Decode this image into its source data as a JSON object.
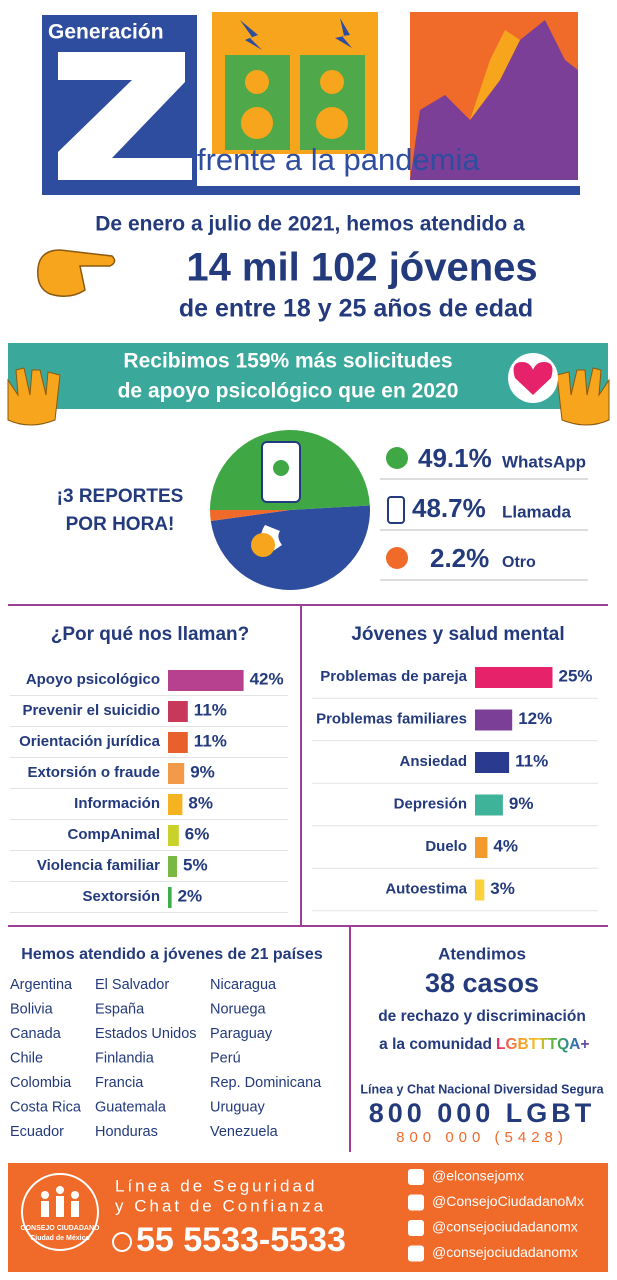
{
  "header": {
    "brand": "Generación",
    "subtitle": "frente a la pandemia"
  },
  "headline": {
    "line1": "De enero a julio de 2021, hemos atendido a",
    "line2": "14 mil 102 jóvenes",
    "line3": "de entre 18 y 25 años de edad"
  },
  "banner": {
    "line1": "Recibimos 159% más solicitudes",
    "line2": "de apoyo psicológico que en 2020"
  },
  "reports": {
    "line1": "¡3 REPORTES",
    "line2": "POR HORA!"
  },
  "chart_data": [
    {
      "type": "pie",
      "categories": [
        "WhatsApp",
        "Llamada",
        "Otro"
      ],
      "values": [
        49.1,
        48.7,
        2.2
      ],
      "value_labels": [
        "49.1%",
        "48.7%",
        "2.2%"
      ],
      "colors": [
        "#3fa845",
        "#2e4d9e",
        "#f06a2a"
      ]
    },
    {
      "type": "hbar",
      "title": "¿Por qué nos llaman?",
      "categories": [
        "Apoyo psicológico",
        "Prevenir el suicidio",
        "Orientación jurídica",
        "Extorsión o fraude",
        "Información",
        "CompAnimal",
        "Violencia familiar",
        "Sextorsión"
      ],
      "values": [
        42,
        11,
        11,
        9,
        8,
        6,
        5,
        2
      ],
      "value_labels": [
        "42%",
        "11%",
        "11%",
        "9%",
        "8%",
        "6%",
        "5%",
        "2%"
      ],
      "colors": [
        "#b8418f",
        "#c8385a",
        "#e8612c",
        "#f29a4a",
        "#f5b321",
        "#c9d22a",
        "#78b843",
        "#3fae49"
      ]
    },
    {
      "type": "hbar",
      "title": "Jóvenes y salud mental",
      "categories": [
        "Problemas de pareja",
        "Problemas familiares",
        "Ansiedad",
        "Depresión",
        "Duelo",
        "Autoestima"
      ],
      "values": [
        25,
        12,
        11,
        9,
        4,
        3
      ],
      "value_labels": [
        "25%",
        "12%",
        "11%",
        "9%",
        "4%",
        "3%"
      ],
      "colors": [
        "#e6226b",
        "#7b3f98",
        "#2a3a8f",
        "#3fb39a",
        "#f39a2c",
        "#fbd23a"
      ]
    }
  ],
  "countries": {
    "title": "Hemos atendido a jóvenes de 21 países",
    "list": [
      "Argentina",
      "Bolivia",
      "Canada",
      "Chile",
      "Colombia",
      "Costa Rica",
      "Ecuador",
      "El Salvador",
      "España",
      "Estados Unidos",
      "Finlandia",
      "Francia",
      "Guatemala",
      "Honduras",
      "Nicaragua",
      "Noruega",
      "Paraguay",
      "Perú",
      "Rep. Dominicana",
      "Uruguay",
      "Venezuela"
    ]
  },
  "lgbt": {
    "line1": "Atendimos",
    "line2": "38 casos",
    "line3": "de rechazo y discriminación",
    "line4": "a la comunidad",
    "acronym": "LGBTTTQA+",
    "hotline_title": "Línea y Chat Nacional Diversidad Segura",
    "number": "800 000 LGBT",
    "number_digits": "800 000 (5428)"
  },
  "footer": {
    "org": "CONSEJO CIUDADANO",
    "org_sub": "Ciudad de México",
    "line1": "Línea de Seguridad",
    "line2": "y Chat de Confianza",
    "phone": "55 5533-5533",
    "social": [
      "@elconsejomx",
      "@ConsejoCiudadanoMx",
      "@consejociudadanomx",
      "@consejociudadanomx"
    ]
  }
}
